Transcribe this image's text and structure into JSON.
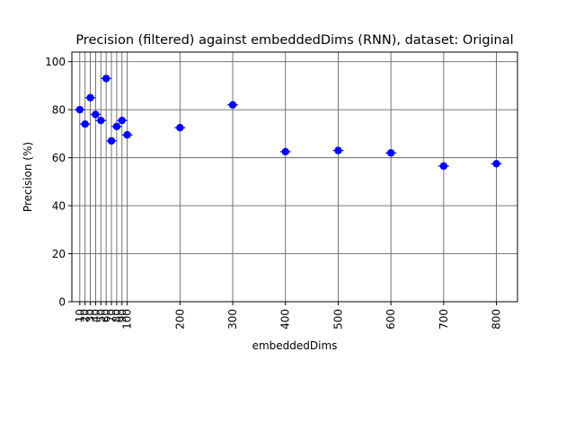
{
  "chart_data": {
    "type": "scatter",
    "title": "Precision (filtered) against embeddedDims (RNN), dataset: Original",
    "xlabel": "embeddedDims",
    "ylabel": "Precision (%)",
    "xlim": [
      -5,
      840
    ],
    "ylim": [
      0,
      104
    ],
    "xticks": [
      10,
      20,
      30,
      40,
      50,
      60,
      70,
      80,
      90,
      100,
      200,
      300,
      400,
      500,
      600,
      700,
      800
    ],
    "xtick_labels": [
      "10",
      "20",
      "30",
      "40",
      "50",
      "60",
      "70",
      "80",
      "90",
      "100",
      "200",
      "300",
      "400",
      "500",
      "600",
      "700",
      "800"
    ],
    "yticks": [
      0,
      20,
      40,
      60,
      80,
      100
    ],
    "ytick_labels": [
      "0",
      "20",
      "40",
      "60",
      "80",
      "100"
    ],
    "grid": true,
    "series": [
      {
        "color": "#0000ff",
        "marker": "circle",
        "x": [
          10,
          20,
          30,
          40,
          50,
          60,
          70,
          80,
          90,
          100,
          200,
          300,
          400,
          500,
          600,
          700,
          800
        ],
        "y": [
          80,
          74,
          85,
          78,
          75.5,
          93,
          67,
          73,
          75.5,
          69.5,
          72.5,
          82,
          62.5,
          63,
          62,
          56.5,
          57.5
        ]
      }
    ]
  }
}
